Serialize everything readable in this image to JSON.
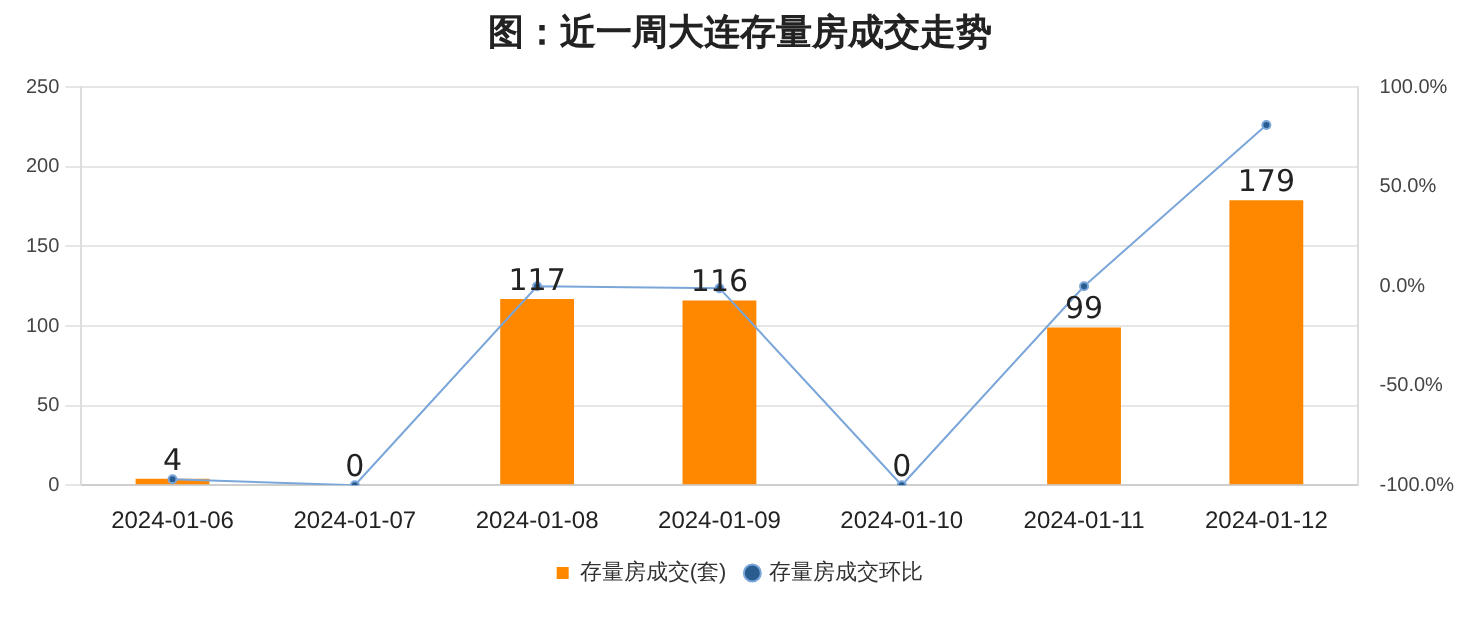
{
  "chart_data": {
    "type": "bar",
    "title": "图：近一周大连存量房成交走势",
    "categories": [
      "2024-01-06",
      "2024-01-07",
      "2024-01-08",
      "2024-01-09",
      "2024-01-10",
      "2024-01-11",
      "2024-01-12"
    ],
    "series": [
      {
        "name": "存量房成交(套)",
        "color": "#ff8800",
        "values": [
          4,
          0,
          117,
          116,
          0,
          99,
          179
        ],
        "data_labels": true
      },
      {
        "name": "存量房成交环比",
        "type": "line",
        "axis": "y2",
        "color": "#7aa6da",
        "marker": "circle",
        "values": [
          -97,
          -100,
          0,
          -1,
          -100,
          0,
          81
        ]
      }
    ],
    "ylim": [
      0,
      250
    ],
    "yticks": [
      0,
      50,
      100,
      150,
      200,
      250
    ],
    "y2lim": [
      -100,
      100
    ],
    "y2ticks": [
      {
        "value": -100,
        "label": "-100.0%"
      },
      {
        "value": -50,
        "label": "-50.0%"
      },
      {
        "value": 0,
        "label": "0.0%"
      },
      {
        "value": 50,
        "label": "50.0%"
      },
      {
        "value": 100,
        "label": "100.0%"
      }
    ],
    "grid": "y",
    "legend": "bottom"
  }
}
